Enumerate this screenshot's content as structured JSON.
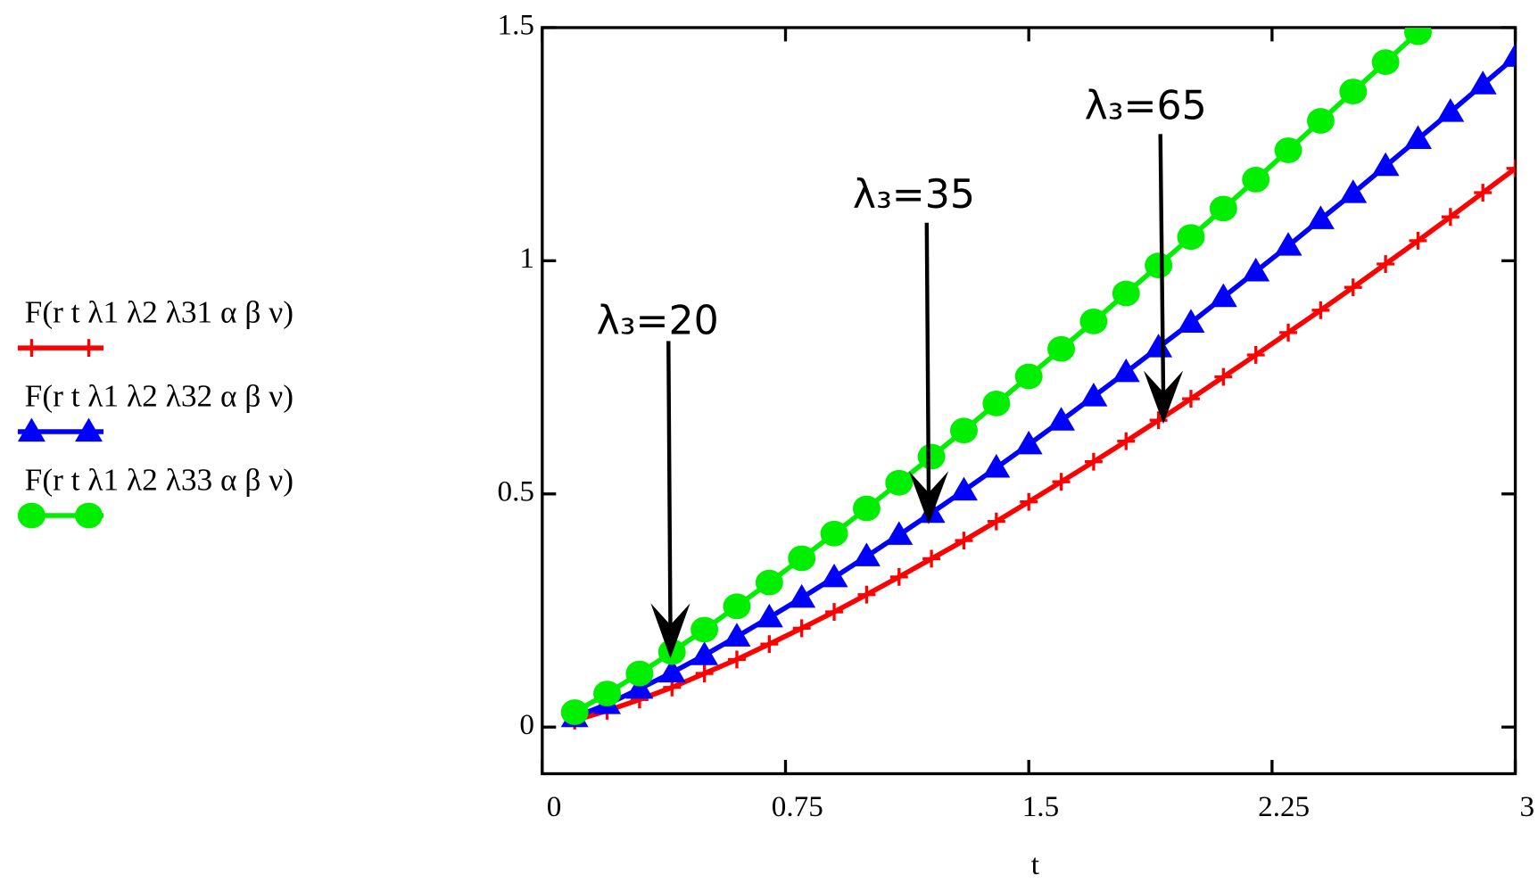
{
  "chart_data": {
    "type": "line",
    "x_label": "t",
    "x": [
      0.1,
      0.2,
      0.3,
      0.4,
      0.5,
      0.6,
      0.7,
      0.8,
      0.9,
      1.0,
      1.1,
      1.2,
      1.3,
      1.4,
      1.5,
      1.6,
      1.7,
      1.8,
      1.9,
      2.0,
      2.1,
      2.2,
      2.3,
      2.4,
      2.5,
      2.6,
      2.7,
      2.8,
      2.9,
      3.0
    ],
    "series": [
      {
        "name": "F(r  t  λ1  λ2  λ31  α  β  ν)",
        "color": "#ff0000",
        "marker": "plus",
        "values": [
          0.014,
          0.035,
          0.059,
          0.085,
          0.115,
          0.145,
          0.178,
          0.212,
          0.247,
          0.284,
          0.322,
          0.361,
          0.4,
          0.441,
          0.483,
          0.526,
          0.569,
          0.613,
          0.658,
          0.704,
          0.751,
          0.798,
          0.846,
          0.894,
          0.943,
          0.993,
          1.043,
          1.094,
          1.146,
          1.198
        ]
      },
      {
        "name": "F(r  t  λ1  λ2  λ32  α  β  ν)",
        "color": "#0000ff",
        "marker": "triangle",
        "values": [
          0.021,
          0.049,
          0.082,
          0.117,
          0.154,
          0.194,
          0.235,
          0.277,
          0.321,
          0.366,
          0.412,
          0.459,
          0.507,
          0.556,
          0.606,
          0.657,
          0.709,
          0.761,
          0.814,
          0.867,
          0.922,
          0.977,
          1.032,
          1.089,
          1.145,
          1.203,
          1.261,
          1.319,
          1.378,
          1.437
        ]
      },
      {
        "name": "F(r  t  λ1  λ2  λ33  α  β  ν)",
        "color": "#00ee00",
        "marker": "circle",
        "values": [
          0.032,
          0.072,
          0.115,
          0.161,
          0.209,
          0.259,
          0.31,
          0.362,
          0.415,
          0.469,
          0.524,
          0.58,
          0.636,
          0.694,
          0.752,
          0.811,
          0.87,
          0.93,
          0.99,
          1.051,
          1.112,
          1.174,
          1.237,
          1.3,
          1.363,
          1.426,
          1.49,
          null,
          null,
          null
        ]
      }
    ],
    "xlim": [
      0,
      3
    ],
    "xticks": [
      0,
      0.75,
      1.5,
      2.25,
      3
    ],
    "ylim": [
      -0.1,
      1.5
    ],
    "yticks": [
      0,
      0.5,
      1,
      1.5
    ],
    "annotations": [
      "λ₃=20",
      "λ₃=35",
      "λ₃=65"
    ]
  }
}
